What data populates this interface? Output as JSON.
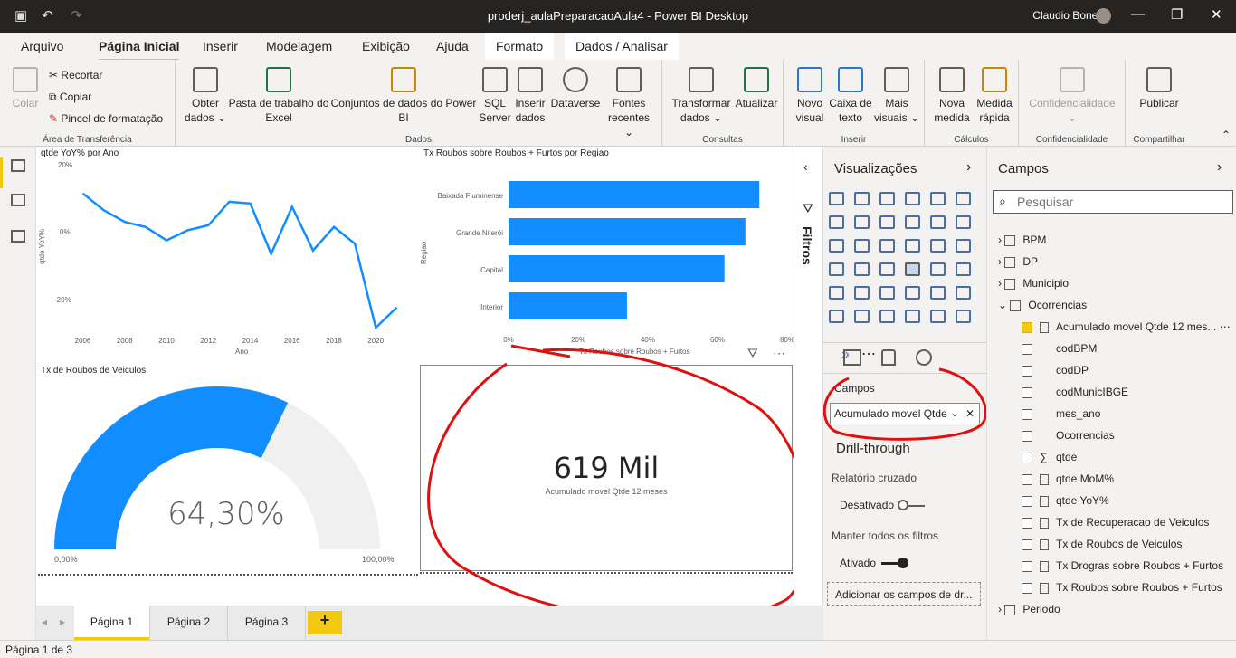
{
  "window": {
    "title": "proderj_aulaPreparacaoAula4 - Power BI Desktop",
    "user": "Claudio Bonel"
  },
  "tabs": [
    "Arquivo",
    "Página Inicial",
    "Inserir",
    "Modelagem",
    "Exibição",
    "Ajuda",
    "Formato",
    "Dados / Analisar"
  ],
  "ribbon": {
    "clipboard": {
      "label": "Área de Transferência",
      "paste": "Colar",
      "cut": "Recortar",
      "copy": "Copiar",
      "format_painter": "Pincel de formatação"
    },
    "data": {
      "label": "Dados",
      "get_data_1": "Obter",
      "get_data_2": "dados",
      "excel_1": "Pasta de trabalho do",
      "excel_2": "Excel",
      "datasets_1": "Conjuntos de dados do Power",
      "datasets_2": "BI",
      "sql_1": "SQL",
      "sql_2": "Server",
      "enter_1": "Inserir",
      "enter_2": "dados",
      "dataverse": "Dataverse",
      "recent_1": "Fontes",
      "recent_2": "recentes"
    },
    "queries": {
      "label": "Consultas",
      "transform_1": "Transformar",
      "transform_2": "dados",
      "refresh": "Atualizar"
    },
    "insert": {
      "label": "Inserir",
      "visual_1": "Novo",
      "visual_2": "visual",
      "textbox_1": "Caixa de",
      "textbox_2": "texto",
      "more_1": "Mais",
      "more_2": "visuais"
    },
    "calc": {
      "label": "Cálculos",
      "measure_1": "Nova",
      "measure_2": "medida",
      "quick_1": "Medida",
      "quick_2": "rápida"
    },
    "sensitivity": {
      "label": "Confidencialidade",
      "btn": "Confidencialidade"
    },
    "share": {
      "label": "Compartilhar",
      "publish": "Publicar"
    }
  },
  "line_chart": {
    "title": "qtde YoY% por Ano",
    "xlabel": "Ano",
    "ylabel": "qtde YoY%",
    "ytick_labels": [
      "20%",
      "0%",
      "-20%"
    ],
    "xtick_labels": [
      "2006",
      "2008",
      "2010",
      "2012",
      "2014",
      "2016",
      "2018",
      "2020"
    ]
  },
  "bar_chart": {
    "title": "Tx Roubos sobre Roubos + Furtos por Regiao",
    "xlabel": "Tx Roubos sobre Roubos + Furtos",
    "ylabel": "Regiao",
    "xtick_labels": [
      "0%",
      "20%",
      "40%",
      "60%",
      "80%"
    ]
  },
  "gauge": {
    "title": "Tx de Roubos de Veiculos",
    "value_label": "64,30%",
    "min_label": "0,00%",
    "max_label": "100,00%"
  },
  "card": {
    "value": "619 Mil",
    "label": "Acumulado movel Qtde 12 meses"
  },
  "chart_data": [
    {
      "type": "line",
      "title": "qtde YoY% por Ano",
      "xlabel": "Ano",
      "ylabel": "qtde YoY%",
      "ylim": [
        -28,
        20
      ],
      "x": [
        2006,
        2007,
        2008,
        2009,
        2010,
        2011,
        2012,
        2013,
        2014,
        2015,
        2016,
        2017,
        2018,
        2019,
        2020,
        2021
      ],
      "series": [
        {
          "values": [
            12,
            7,
            3.5,
            2,
            -2,
            1,
            2.5,
            9.5,
            9,
            -6,
            8,
            -5,
            2,
            -3,
            -28,
            -22
          ]
        }
      ]
    },
    {
      "type": "bar",
      "title": "Tx Roubos sobre Roubos + Furtos por Regiao",
      "xlabel": "Tx Roubos sobre Roubos + Furtos",
      "ylabel": "Regiao",
      "xlim": [
        0,
        80
      ],
      "categories": [
        "Baixada Fluminense",
        "Grande Niterói",
        "Capital",
        "Interior"
      ],
      "values": [
        72,
        68,
        62,
        34
      ]
    },
    {
      "type": "gauge",
      "title": "Tx de Roubos de Veiculos",
      "value": 64.3,
      "min": 0,
      "max": 100
    }
  ],
  "filters_label": "Filtros",
  "viz": {
    "header": "Visualizações",
    "fields_label": "Campos",
    "field_well": "Acumulado movel Qtde",
    "drill_header": "Drill-through",
    "cross_report": "Relatório cruzado",
    "off": "Desativado",
    "keep_filters": "Manter todos os filtros",
    "on": "Ativado",
    "add_drill": "Adicionar os campos de dr..."
  },
  "fields": {
    "header": "Campos",
    "search_placeholder": "Pesquisar",
    "tables": [
      "BPM",
      "DP",
      "Municipio",
      "Ocorrencias"
    ],
    "ocorrencias_fields": [
      "Acumulado movel Qtde 12 mes...",
      "codBPM",
      "codDP",
      "codMunicIBGE",
      "mes_ano",
      "Ocorrencias",
      "qtde",
      "qtde MoM%",
      "qtde YoY%",
      "Tx de Recuperacao de Veiculos",
      "Tx de Roubos de Veiculos",
      "Tx Drogras sobre Roubos + Furtos",
      "Tx Roubos sobre Roubos + Furtos"
    ],
    "last_table": "Periodo"
  },
  "pages": [
    "Página 1",
    "Página 2",
    "Página 3"
  ],
  "add_page": "+",
  "status": "Página 1 de 3",
  "colors": {
    "accent": "#f2c811",
    "series": "#118dff",
    "annotation": "#e01010"
  }
}
